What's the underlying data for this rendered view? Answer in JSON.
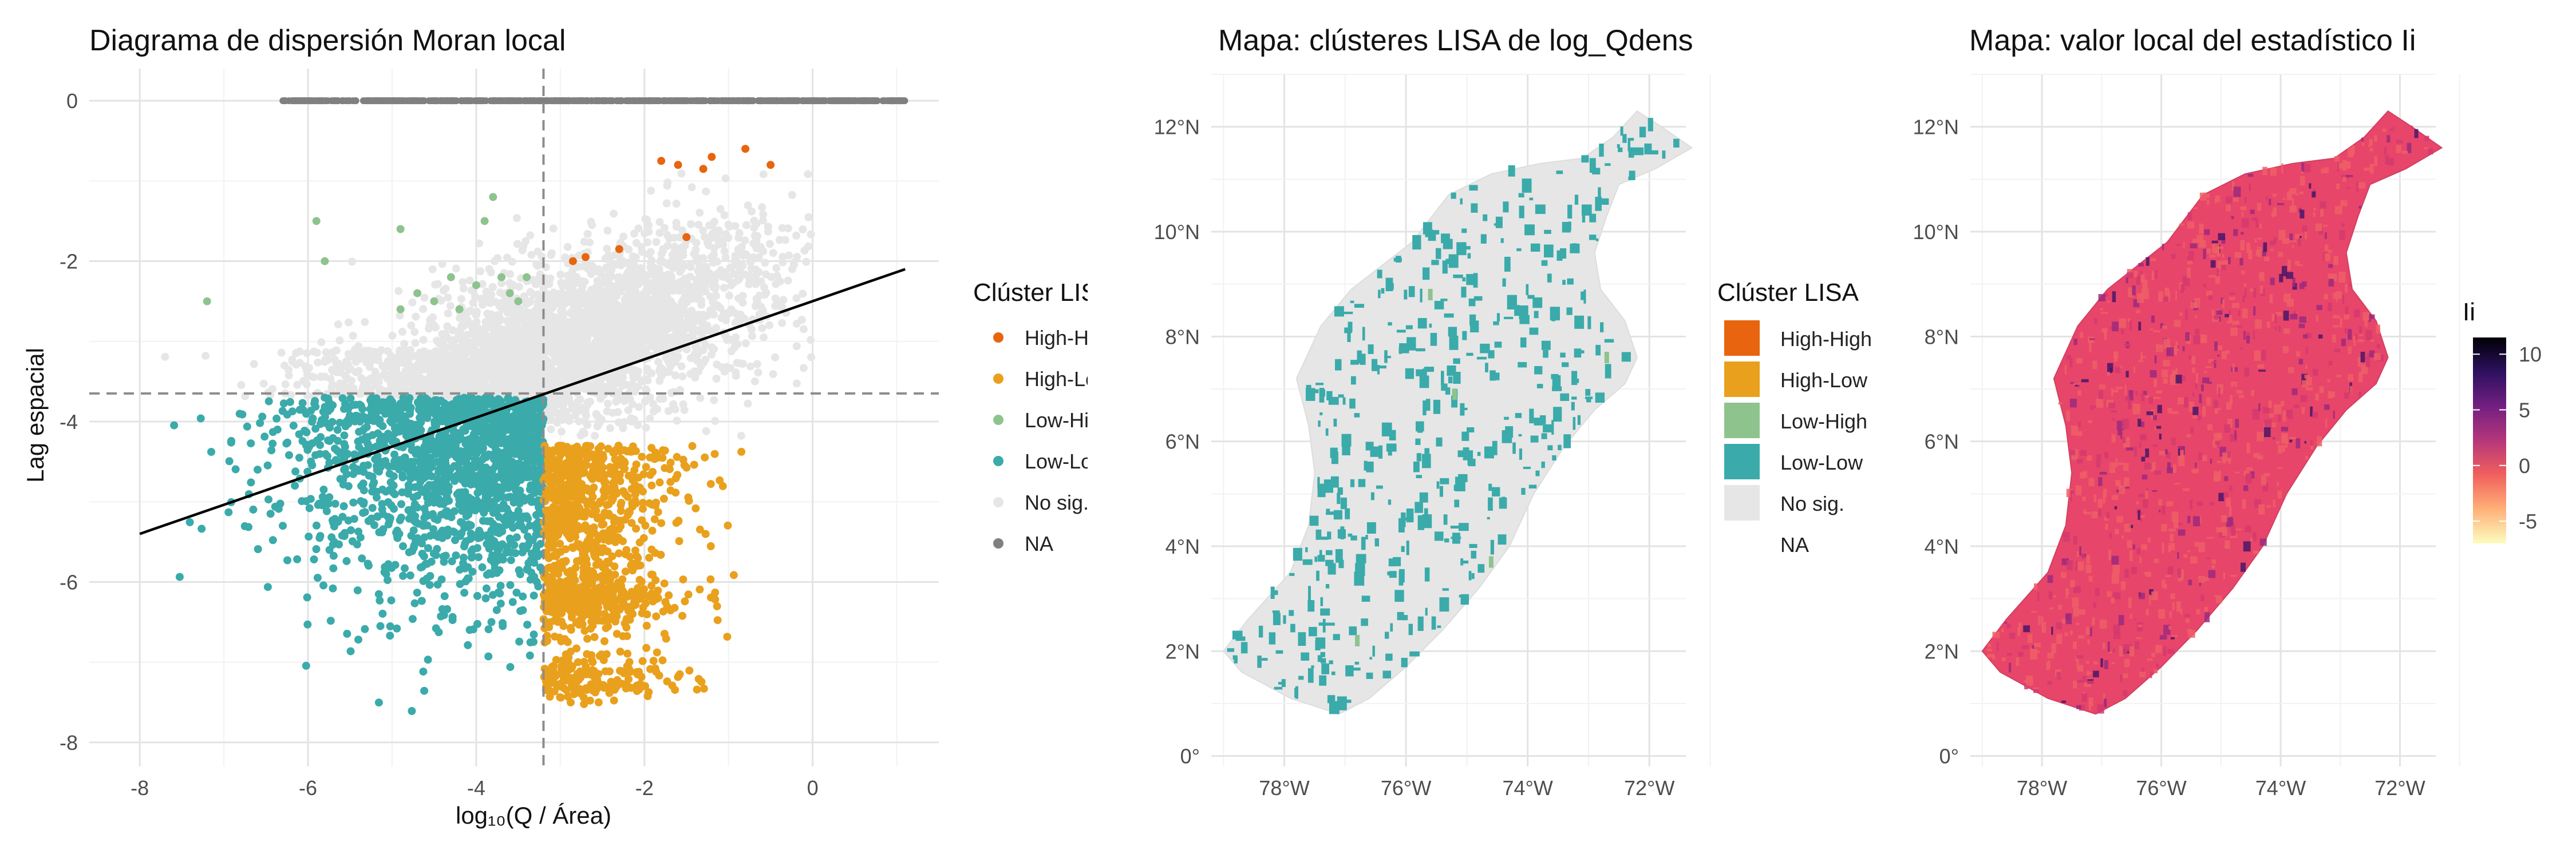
{
  "chart_data": [
    {
      "type": "scatter",
      "title": "Diagrama de dispersión Moran local",
      "xlabel": "log₁₀(Q / Área)",
      "ylabel": "Lag espacial",
      "xlim": [
        -8.6,
        1.5
      ],
      "ylim": [
        -8.3,
        0.4
      ],
      "xticks": [
        "-8",
        "-6",
        "-4",
        "-2",
        "0"
      ],
      "xtick_values": [
        -8,
        -6,
        -4,
        -2,
        0
      ],
      "yticks": [
        "0",
        "-2",
        "-4",
        "-6",
        "-8"
      ],
      "ytick_values": [
        0,
        -2,
        -4,
        -6,
        -8
      ],
      "mean_x": -3.2,
      "mean_y": -3.65,
      "fit_line": {
        "x": [
          -8.0,
          1.1
        ],
        "y": [
          -5.4,
          -2.1
        ]
      },
      "na_strip": {
        "y": 0,
        "x_range": [
          -6.3,
          1.1
        ]
      },
      "legend_title": "Clúster LISA",
      "legend_position": "right",
      "grid": true,
      "series": [
        {
          "name": "High-High",
          "color": "#E8640E",
          "points": [
            [
              -0.8,
              -0.6
            ],
            [
              -0.5,
              -0.8
            ],
            [
              -1.2,
              -0.7
            ],
            [
              -1.3,
              -0.85
            ],
            [
              -1.8,
              -0.75
            ],
            [
              -1.6,
              -0.8
            ],
            [
              -2.7,
              -1.95
            ],
            [
              -2.85,
              -2.0
            ],
            [
              -2.3,
              -1.85
            ],
            [
              -1.5,
              -1.7
            ]
          ]
        },
        {
          "name": "High-Low",
          "color": "#E9A01C",
          "x_range": [
            -3.2,
            -0.7
          ],
          "y_range": [
            -8.0,
            -4.3
          ]
        },
        {
          "name": "Low-High",
          "color": "#8EC38E",
          "points": [
            [
              -5.9,
              -1.5
            ],
            [
              -5.8,
              -2.0
            ],
            [
              -7.2,
              -2.5
            ],
            [
              -4.9,
              -1.6
            ],
            [
              -3.8,
              -1.2
            ],
            [
              -3.9,
              -1.5
            ],
            [
              -4.5,
              -2.5
            ],
            [
              -4.0,
              -2.3
            ],
            [
              -4.9,
              -2.6
            ],
            [
              -4.3,
              -2.2
            ],
            [
              -3.6,
              -2.4
            ],
            [
              -3.4,
              -2.2
            ],
            [
              -4.7,
              -2.4
            ],
            [
              -3.7,
              -2.2
            ],
            [
              -4.2,
              -2.6
            ],
            [
              -3.5,
              -2.5
            ]
          ]
        },
        {
          "name": "Low-Low",
          "color": "#3BAAAA",
          "x_range": [
            -8.1,
            -3.2
          ],
          "y_range": [
            -8.0,
            -3.7
          ]
        },
        {
          "name": "No sig.",
          "color": "#E6E6E6",
          "x_range": [
            -7.9,
            0.0
          ],
          "y_range": [
            -5.5,
            -0.9
          ]
        },
        {
          "name": "NA",
          "color": "#808080",
          "x_range": [
            -6.3,
            1.1
          ],
          "y": 0
        }
      ]
    },
    {
      "type": "map",
      "title": "Mapa: clústeres LISA de log_Qdens",
      "xticks": [
        "78°W",
        "76°W",
        "74°W",
        "72°W"
      ],
      "yticks": [
        "0°",
        "2°N",
        "4°N",
        "6°N",
        "8°N",
        "10°N",
        "12°N"
      ],
      "legend_title": "Clúster LISA",
      "legend_position": "right",
      "categories": [
        {
          "name": "High-High",
          "color": "#E8640E"
        },
        {
          "name": "High-Low",
          "color": "#E9A01C"
        },
        {
          "name": "Low-High",
          "color": "#8EC38E"
        },
        {
          "name": "Low-Low",
          "color": "#3BAAAA"
        },
        {
          "name": "No sig.",
          "color": "#E6E6E6"
        },
        {
          "name": "NA",
          "color": null
        }
      ]
    },
    {
      "type": "map",
      "title": "Mapa: valor local del estadístico Ii",
      "xticks": [
        "78°W",
        "76°W",
        "74°W",
        "72°W"
      ],
      "yticks": [
        "0°",
        "2°N",
        "4°N",
        "6°N",
        "8°N",
        "10°N",
        "12°N"
      ],
      "colorbar_title": "Ii",
      "colorbar_ticks": [
        "10",
        "5",
        "0",
        "-5"
      ],
      "colorbar_range": [
        -7,
        11.5
      ],
      "colorscale": [
        "#FCFDBF",
        "#FEB078",
        "#F1605D",
        "#B5367A",
        "#721F81",
        "#2D1160",
        "#000004"
      ],
      "legend_position": "right"
    }
  ]
}
